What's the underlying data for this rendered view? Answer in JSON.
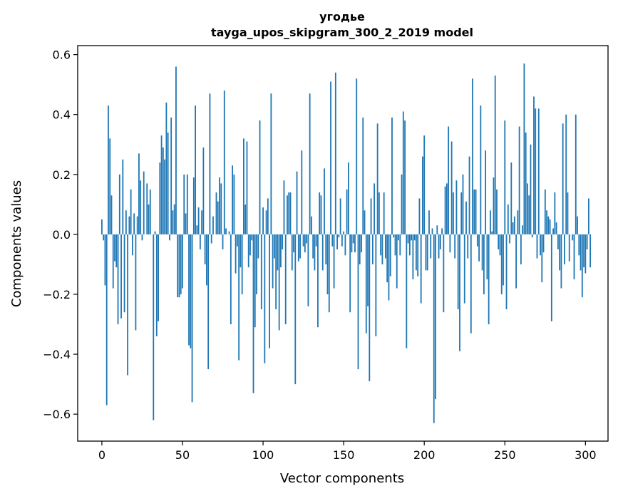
{
  "chart_data": {
    "type": "bar",
    "title": "угодье",
    "subtitle": "tayga_upos_skipgram_300_2_2019 model",
    "xlabel": "Vector components",
    "ylabel": "Components values",
    "xlim": [
      -15,
      314
    ],
    "ylim": [
      -0.69,
      0.63
    ],
    "xticks": [
      0,
      50,
      100,
      150,
      200,
      250,
      300
    ],
    "yticks": [
      -0.6,
      -0.4,
      -0.2,
      0.0,
      0.2,
      0.4,
      0.6
    ],
    "xtick_labels": [
      "0",
      "50",
      "100",
      "150",
      "200",
      "250",
      "300"
    ],
    "ytick_labels": [
      "−0.6",
      "−0.4",
      "−0.2",
      "0.0",
      "0.2",
      "0.4",
      "0.6"
    ],
    "grid": false,
    "bar_color": "#1f77b4",
    "values": [
      0.05,
      -0.02,
      -0.17,
      -0.57,
      0.43,
      0.32,
      0.13,
      -0.18,
      -0.09,
      -0.11,
      -0.3,
      0.2,
      -0.28,
      0.25,
      -0.26,
      0.08,
      -0.47,
      0.06,
      0.15,
      -0.07,
      0.07,
      -0.32,
      0.06,
      0.27,
      0.18,
      -0.02,
      0.21,
      0.0,
      0.17,
      0.1,
      0.15,
      0.0,
      -0.62,
      0.01,
      -0.34,
      -0.29,
      0.24,
      0.33,
      0.29,
      0.25,
      0.44,
      0.34,
      -0.02,
      0.39,
      0.08,
      0.1,
      0.56,
      -0.21,
      -0.21,
      -0.2,
      -0.18,
      0.2,
      0.07,
      0.2,
      -0.37,
      -0.38,
      -0.56,
      0.19,
      0.43,
      0.03,
      0.09,
      -0.05,
      0.08,
      0.29,
      -0.1,
      -0.17,
      -0.45,
      0.47,
      -0.03,
      0.06,
      0.0,
      0.14,
      0.11,
      0.19,
      0.17,
      -0.05,
      0.48,
      0.02,
      0.0,
      0.01,
      -0.3,
      0.23,
      0.2,
      -0.13,
      -0.04,
      -0.42,
      -0.11,
      -0.2,
      0.32,
      0.1,
      0.31,
      -0.11,
      -0.07,
      -0.02,
      -0.53,
      -0.31,
      -0.2,
      -0.08,
      0.38,
      -0.25,
      0.09,
      -0.43,
      0.08,
      0.12,
      -0.38,
      0.47,
      -0.18,
      -0.08,
      -0.25,
      -0.12,
      -0.32,
      -0.11,
      -0.05,
      0.18,
      -0.3,
      0.13,
      0.14,
      0.14,
      -0.12,
      -0.06,
      -0.5,
      0.21,
      -0.09,
      -0.08,
      0.28,
      -0.04,
      -0.06,
      -0.03,
      -0.24,
      0.47,
      0.06,
      -0.08,
      -0.12,
      -0.04,
      -0.31,
      0.14,
      0.13,
      -0.12,
      0.22,
      -0.1,
      -0.2,
      -0.26,
      0.51,
      -0.04,
      -0.18,
      0.54,
      -0.05,
      -0.01,
      0.12,
      -0.04,
      0.01,
      -0.07,
      0.15,
      0.24,
      -0.26,
      -0.06,
      -0.03,
      -0.06,
      0.52,
      -0.45,
      -0.1,
      -0.06,
      0.39,
      0.08,
      -0.33,
      -0.24,
      -0.49,
      0.12,
      -0.1,
      0.17,
      -0.34,
      0.37,
      0.14,
      -0.07,
      -0.1,
      0.14,
      -0.08,
      -0.16,
      -0.22,
      -0.14,
      0.39,
      -0.01,
      -0.07,
      -0.18,
      -0.02,
      -0.07,
      0.2,
      0.41,
      0.38,
      -0.38,
      -0.03,
      -0.07,
      -0.02,
      -0.15,
      -0.02,
      -0.12,
      -0.14,
      0.12,
      -0.23,
      0.26,
      0.33,
      -0.12,
      -0.12,
      0.08,
      -0.08,
      0.02,
      -0.63,
      -0.55,
      0.03,
      -0.08,
      -0.05,
      0.02,
      -0.26,
      0.16,
      0.17,
      0.36,
      -0.06,
      0.31,
      0.14,
      -0.08,
      0.18,
      -0.25,
      -0.39,
      0.14,
      0.2,
      -0.23,
      0.11,
      -0.08,
      0.26,
      -0.33,
      0.52,
      0.15,
      0.15,
      -0.04,
      -0.09,
      0.43,
      -0.12,
      -0.2,
      0.28,
      -0.15,
      -0.3,
      0.08,
      0.01,
      0.19,
      0.53,
      0.15,
      -0.05,
      -0.07,
      -0.2,
      -0.17,
      0.38,
      -0.25,
      0.1,
      -0.03,
      0.24,
      0.04,
      0.06,
      -0.18,
      0.08,
      0.36,
      -0.1,
      0.03,
      0.57,
      0.34,
      0.17,
      0.13,
      0.3,
      -0.01,
      0.46,
      0.42,
      -0.08,
      0.42,
      -0.07,
      -0.16,
      -0.06,
      0.15,
      0.08,
      0.06,
      0.05,
      -0.29,
      0.02,
      0.14,
      0.04,
      -0.05,
      -0.12,
      -0.18,
      0.37,
      -0.1,
      0.4,
      0.14,
      -0.09,
      0.0,
      -0.02,
      -0.15,
      0.4,
      0.06,
      -0.07,
      -0.12,
      -0.21,
      -0.11,
      -0.13,
      -0.05,
      0.12,
      -0.11
    ]
  }
}
